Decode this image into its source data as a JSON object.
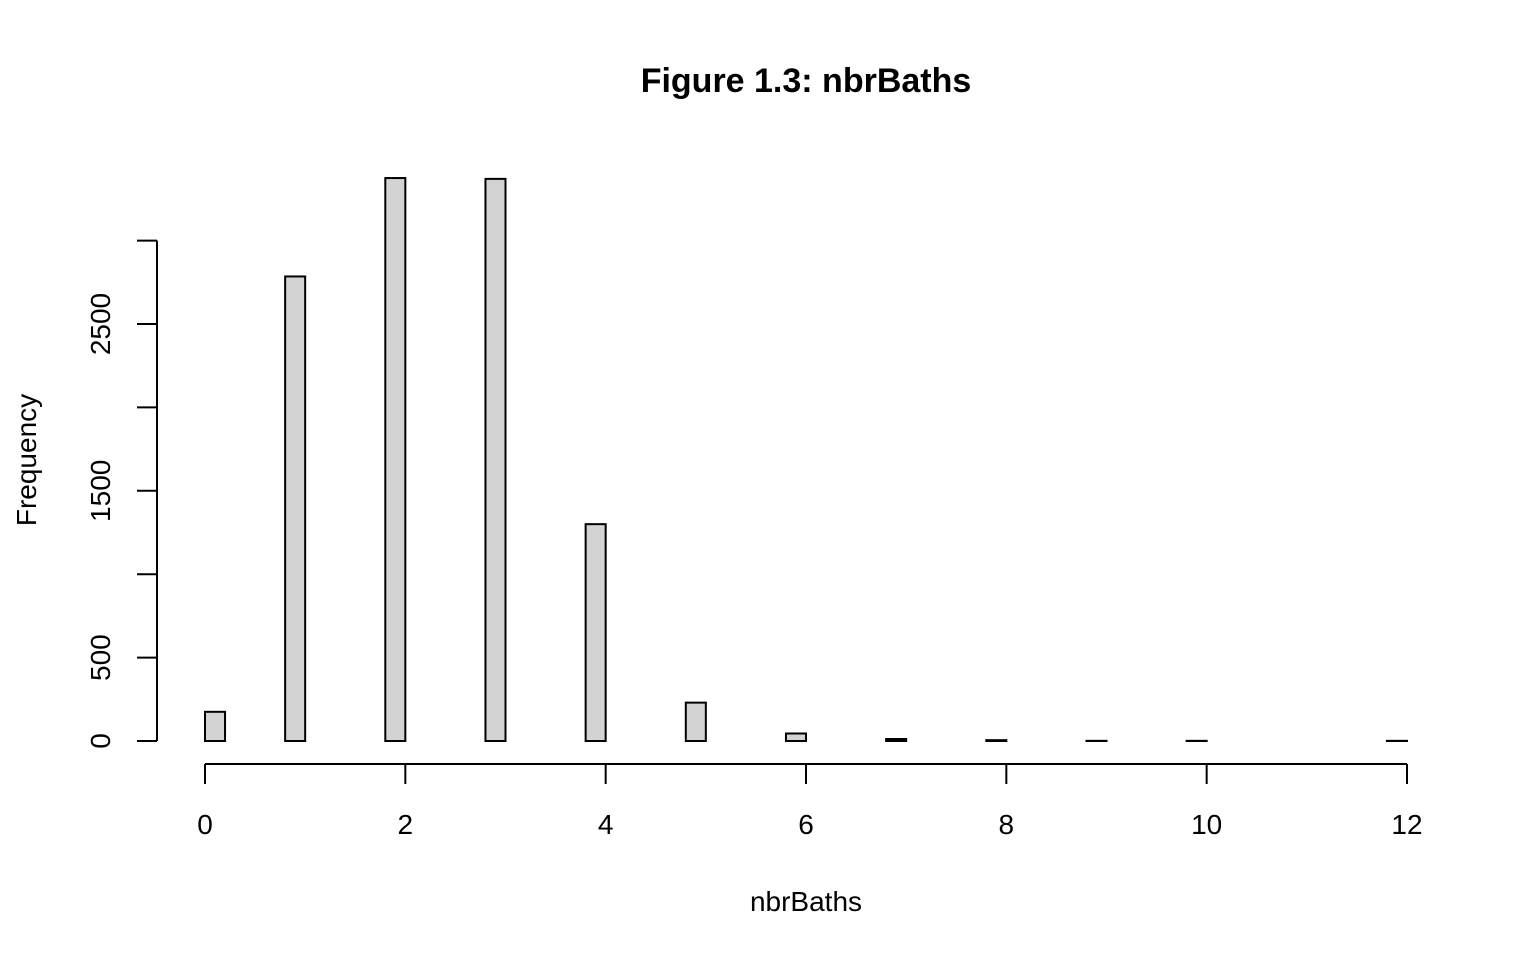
{
  "chart_data": {
    "type": "bar",
    "title": "Figure 1.3: nbrBaths",
    "xlabel": "nbrBaths",
    "ylabel": "Frequency",
    "x_ticks": [
      0,
      2,
      4,
      6,
      8,
      10,
      12
    ],
    "x_tick_labels": [
      "0",
      "2",
      "4",
      "6",
      "8",
      "10",
      "12"
    ],
    "y_ticks": [
      0,
      500,
      1000,
      1500,
      2000,
      2500,
      3000
    ],
    "y_tick_labels": [
      "0",
      "500",
      "",
      "1500",
      "",
      "2500",
      ""
    ],
    "xlim": [
      0,
      12
    ],
    "ylim": [
      0,
      3500
    ],
    "bar_width": 0.2,
    "bars": [
      {
        "x0": 0.0,
        "x1": 0.2,
        "value": 175
      },
      {
        "x0": 0.8,
        "x1": 1.0,
        "value": 2785
      },
      {
        "x0": 1.8,
        "x1": 2.0,
        "value": 3375
      },
      {
        "x0": 2.8,
        "x1": 3.0,
        "value": 3370
      },
      {
        "x0": 3.8,
        "x1": 4.0,
        "value": 1300
      },
      {
        "x0": 4.8,
        "x1": 5.0,
        "value": 230
      },
      {
        "x0": 5.8,
        "x1": 6.0,
        "value": 45
      },
      {
        "x0": 6.8,
        "x1": 7.0,
        "value": 12
      },
      {
        "x0": 7.8,
        "x1": 8.0,
        "value": 5
      },
      {
        "x0": 8.8,
        "x1": 9.0,
        "value": 1
      },
      {
        "x0": 9.8,
        "x1": 10.0,
        "value": 1
      },
      {
        "x0": 10.8,
        "x1": 11.0,
        "value": 0
      },
      {
        "x0": 11.8,
        "x1": 12.0,
        "value": 1
      }
    ],
    "bar_fill": "#d3d3d3",
    "bar_stroke": "#000000",
    "grid": false,
    "legend": "none"
  }
}
